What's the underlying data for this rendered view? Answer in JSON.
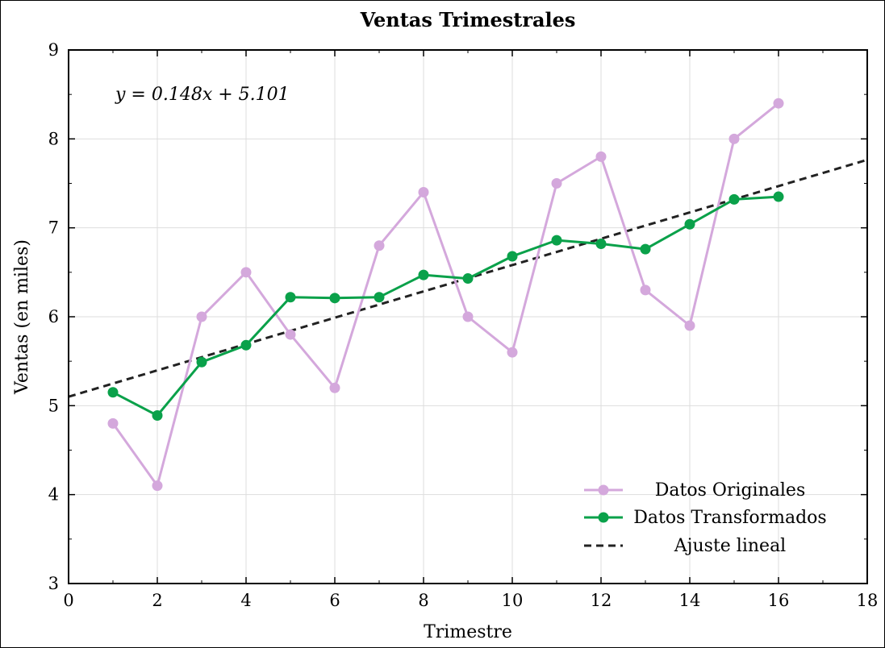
{
  "chart_data": {
    "type": "line",
    "title": "Ventas Trimestrales",
    "xlabel": "Trimestre",
    "ylabel": "Ventas (en miles)",
    "xlim": [
      0,
      18
    ],
    "ylim": [
      3,
      9
    ],
    "xticks": [
      0,
      2,
      4,
      6,
      8,
      10,
      12,
      14,
      16,
      18
    ],
    "yticks": [
      3,
      4,
      5,
      6,
      7,
      8,
      9
    ],
    "grid": true,
    "legend_position": "bottom-right",
    "annotation": "y = 0.148x + 5.101",
    "x": [
      1,
      2,
      3,
      4,
      5,
      6,
      7,
      8,
      9,
      10,
      11,
      12,
      13,
      14,
      15,
      16
    ],
    "series": [
      {
        "name": "Datos Originales",
        "color": "#d4a8dc",
        "style": "line-marker",
        "values": [
          4.8,
          4.1,
          6.0,
          6.5,
          5.8,
          5.2,
          6.8,
          7.4,
          6.0,
          5.6,
          7.5,
          7.8,
          6.3,
          5.9,
          8.0,
          8.4
        ]
      },
      {
        "name": "Datos Transformados",
        "color": "#0aa14a",
        "style": "line-marker",
        "values": [
          5.15,
          4.89,
          5.49,
          5.68,
          6.22,
          6.21,
          6.22,
          6.47,
          6.43,
          6.68,
          6.86,
          6.82,
          6.76,
          7.04,
          7.32,
          7.35
        ]
      },
      {
        "name": "Ajuste lineal",
        "color": "#222222",
        "style": "dashed",
        "slope": 0.148,
        "intercept": 5.101
      }
    ]
  }
}
